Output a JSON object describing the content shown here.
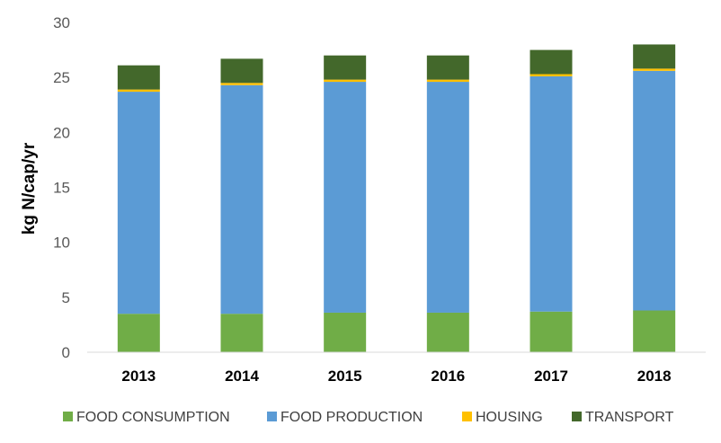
{
  "chart_data": {
    "type": "bar",
    "stacked": true,
    "title": "",
    "xlabel": "",
    "ylabel": "kg N/cap/yr",
    "ylim": [
      0,
      30
    ],
    "yticks": [
      0,
      5,
      10,
      15,
      20,
      25,
      30
    ],
    "categories": [
      "2013",
      "2014",
      "2015",
      "2016",
      "2017",
      "2018"
    ],
    "series": [
      {
        "name": "FOOD CONSUMPTION",
        "color": "#70ad47",
        "values": [
          3.5,
          3.5,
          3.6,
          3.6,
          3.7,
          3.8
        ]
      },
      {
        "name": "FOOD PRODUCTION",
        "color": "#5b9bd5",
        "values": [
          20.2,
          20.8,
          21.0,
          21.0,
          21.4,
          21.8
        ]
      },
      {
        "name": "HOUSING",
        "color": "#ffc000",
        "values": [
          0.2,
          0.2,
          0.2,
          0.2,
          0.2,
          0.2
        ]
      },
      {
        "name": "TRANSPORT",
        "color": "#43682b",
        "values": [
          2.2,
          2.2,
          2.2,
          2.2,
          2.2,
          2.2
        ]
      }
    ],
    "grid": false,
    "legend_position": "bottom"
  }
}
